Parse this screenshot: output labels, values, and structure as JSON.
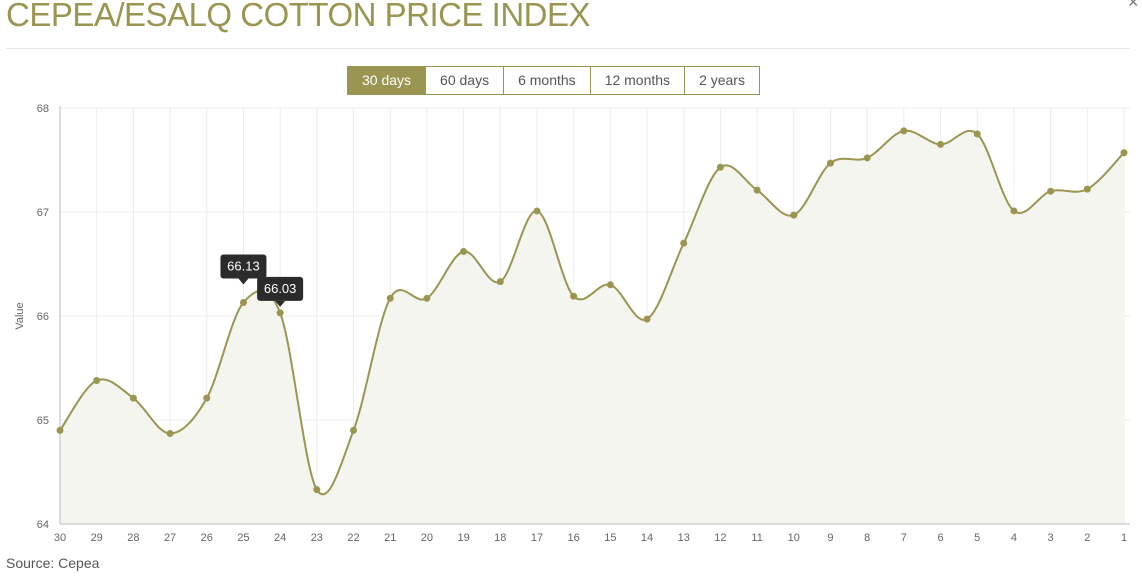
{
  "header": {
    "title": "CEPEA/ESALQ COTTON PRICE INDEX",
    "close_glyph": "×"
  },
  "range_selector": {
    "options": [
      "30 days",
      "60 days",
      "6 months",
      "12 months",
      "2 years"
    ],
    "active_index": 0
  },
  "footer": {
    "source": "Source: Cepea"
  },
  "colors": {
    "accent": "#9a9651",
    "area_fill": "#f5f5f0",
    "grid": "#ececec",
    "tooltip_bg": "#2b2b2b"
  },
  "chart_data": {
    "type": "area",
    "title": "",
    "xlabel": "",
    "ylabel": "Value",
    "ylim": [
      64,
      68
    ],
    "yticks": [
      64,
      65,
      66,
      67,
      68
    ],
    "grid": true,
    "categories": [
      "30",
      "29",
      "28",
      "27",
      "26",
      "25",
      "24",
      "23",
      "22",
      "21",
      "20",
      "19",
      "18",
      "17",
      "16",
      "15",
      "14",
      "13",
      "12",
      "11",
      "10",
      "9",
      "8",
      "7",
      "6",
      "5",
      "4",
      "3",
      "2",
      "1"
    ],
    "values": [
      64.9,
      65.38,
      65.21,
      64.87,
      65.21,
      66.13,
      66.03,
      64.33,
      64.9,
      66.17,
      66.17,
      66.62,
      66.33,
      67.01,
      66.19,
      66.3,
      65.97,
      66.7,
      67.43,
      67.21,
      66.97,
      67.47,
      67.52,
      67.78,
      67.65,
      67.75,
      67.01,
      67.2,
      67.22,
      67.57
    ],
    "tooltips": [
      {
        "category": "25",
        "label": "66.13"
      },
      {
        "category": "24",
        "label": "66.03"
      }
    ]
  }
}
